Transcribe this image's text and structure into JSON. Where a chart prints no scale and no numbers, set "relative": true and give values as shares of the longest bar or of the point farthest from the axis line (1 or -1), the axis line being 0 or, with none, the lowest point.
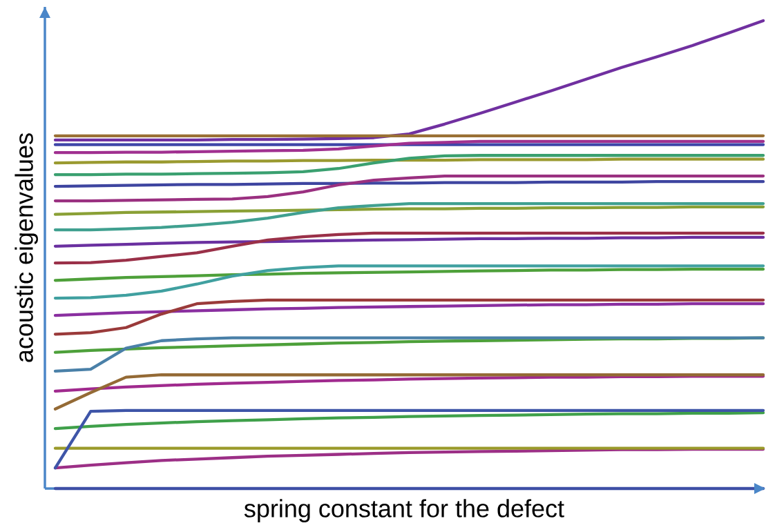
{
  "chart_data": {
    "type": "line",
    "relative": true,
    "xlabel": "spring constant for the defect",
    "ylabel": "acoustic eigenvalues",
    "categories": [
      null,
      null,
      null,
      null,
      null,
      null,
      null,
      null,
      null,
      null,
      null,
      null,
      null,
      null,
      null,
      null,
      null,
      null,
      null,
      null,
      null
    ],
    "series": [
      {
        "color": "#3e4fa6",
        "values": [
          0,
          0,
          0,
          0,
          0,
          0,
          0,
          0,
          0,
          0,
          0,
          0,
          0,
          0,
          0,
          0,
          0,
          0,
          0,
          0,
          0
        ]
      },
      {
        "color": "#9c2f86",
        "values": [
          0.044,
          0.05,
          0.055,
          0.06,
          0.063,
          0.066,
          0.069,
          0.071,
          0.073,
          0.075,
          0.077,
          0.078,
          0.079,
          0.08,
          0.081,
          0.082,
          0.083,
          0.083,
          0.084,
          0.084,
          0.084
        ]
      },
      {
        "color": "#9a9a2a",
        "values": [
          0.086,
          0.086,
          0.086,
          0.086,
          0.086,
          0.086,
          0.086,
          0.086,
          0.086,
          0.086,
          0.086,
          0.086,
          0.086,
          0.086,
          0.086,
          0.086,
          0.086,
          0.086,
          0.086,
          0.086,
          0.086
        ]
      },
      {
        "color": "#3fa04a",
        "values": [
          0.128,
          0.133,
          0.137,
          0.14,
          0.143,
          0.145,
          0.147,
          0.149,
          0.151,
          0.152,
          0.154,
          0.155,
          0.156,
          0.157,
          0.158,
          0.159,
          0.16,
          0.16,
          0.161,
          0.161,
          0.162
        ]
      },
      {
        "color": "#3e55a8",
        "values": [
          0.044,
          0.165,
          0.167,
          0.167,
          0.167,
          0.167,
          0.167,
          0.167,
          0.167,
          0.167,
          0.167,
          0.167,
          0.167,
          0.167,
          0.167,
          0.167,
          0.167,
          0.167,
          0.167,
          0.167,
          0.167
        ]
      },
      {
        "color": "#a02a8e",
        "values": [
          0.208,
          0.213,
          0.217,
          0.22,
          0.223,
          0.225,
          0.227,
          0.229,
          0.231,
          0.232,
          0.234,
          0.235,
          0.236,
          0.237,
          0.238,
          0.238,
          0.239,
          0.239,
          0.24,
          0.24,
          0.24
        ]
      },
      {
        "color": "#946a35",
        "values": [
          0.17,
          0.205,
          0.238,
          0.243,
          0.243,
          0.243,
          0.243,
          0.243,
          0.243,
          0.243,
          0.243,
          0.243,
          0.243,
          0.243,
          0.243,
          0.243,
          0.243,
          0.243,
          0.243,
          0.243,
          0.243
        ]
      },
      {
        "color": "#4da03a",
        "values": [
          0.291,
          0.295,
          0.298,
          0.301,
          0.303,
          0.305,
          0.307,
          0.309,
          0.311,
          0.312,
          0.314,
          0.315,
          0.316,
          0.317,
          0.318,
          0.319,
          0.32,
          0.32,
          0.321,
          0.321,
          0.322
        ]
      },
      {
        "color": "#4a80a8",
        "values": [
          0.251,
          0.255,
          0.3,
          0.316,
          0.32,
          0.322,
          0.322,
          0.322,
          0.322,
          0.322,
          0.322,
          0.322,
          0.322,
          0.322,
          0.322,
          0.322,
          0.322,
          0.322,
          0.322,
          0.322,
          0.322
        ]
      },
      {
        "color": "#8a2fa0",
        "values": [
          0.37,
          0.373,
          0.376,
          0.378,
          0.38,
          0.382,
          0.384,
          0.385,
          0.387,
          0.388,
          0.389,
          0.39,
          0.391,
          0.392,
          0.393,
          0.393,
          0.394,
          0.394,
          0.395,
          0.395,
          0.395
        ]
      },
      {
        "color": "#9a3a3a",
        "values": [
          0.33,
          0.333,
          0.344,
          0.373,
          0.395,
          0.4,
          0.403,
          0.403,
          0.403,
          0.403,
          0.403,
          0.403,
          0.403,
          0.403,
          0.403,
          0.403,
          0.403,
          0.403,
          0.403,
          0.403,
          0.403
        ]
      },
      {
        "color": "#4ea03a",
        "values": [
          0.445,
          0.448,
          0.451,
          0.453,
          0.455,
          0.457,
          0.458,
          0.46,
          0.461,
          0.462,
          0.463,
          0.464,
          0.465,
          0.466,
          0.467,
          0.467,
          0.468,
          0.468,
          0.469,
          0.469,
          0.469
        ]
      },
      {
        "color": "#40a0a0",
        "values": [
          0.407,
          0.408,
          0.413,
          0.422,
          0.437,
          0.454,
          0.466,
          0.472,
          0.476,
          0.476,
          0.476,
          0.476,
          0.476,
          0.476,
          0.476,
          0.476,
          0.476,
          0.476,
          0.476,
          0.476,
          0.476
        ]
      },
      {
        "color": "#6a30a0",
        "values": [
          0.518,
          0.52,
          0.522,
          0.524,
          0.526,
          0.527,
          0.528,
          0.529,
          0.53,
          0.531,
          0.532,
          0.533,
          0.534,
          0.534,
          0.535,
          0.535,
          0.536,
          0.536,
          0.537,
          0.537,
          0.537
        ]
      },
      {
        "color": "#9a3048",
        "values": [
          0.482,
          0.483,
          0.488,
          0.496,
          0.504,
          0.518,
          0.531,
          0.538,
          0.543,
          0.546,
          0.546,
          0.546,
          0.546,
          0.546,
          0.546,
          0.546,
          0.546,
          0.546,
          0.546,
          0.546,
          0.546
        ]
      },
      {
        "color": "#8aa035",
        "values": [
          0.586,
          0.588,
          0.59,
          0.591,
          0.592,
          0.593,
          0.594,
          0.595,
          0.596,
          0.597,
          0.598,
          0.598,
          0.599,
          0.599,
          0.6,
          0.6,
          0.601,
          0.601,
          0.602,
          0.602,
          0.602
        ]
      },
      {
        "color": "#40a090",
        "values": [
          0.553,
          0.553,
          0.555,
          0.558,
          0.563,
          0.569,
          0.578,
          0.59,
          0.6,
          0.605,
          0.609,
          0.609,
          0.609,
          0.609,
          0.609,
          0.609,
          0.609,
          0.609,
          0.609,
          0.609,
          0.609
        ]
      },
      {
        "color": "#3e45a0",
        "values": [
          0.646,
          0.647,
          0.648,
          0.649,
          0.65,
          0.65,
          0.651,
          0.652,
          0.652,
          0.653,
          0.653,
          0.654,
          0.654,
          0.654,
          0.655,
          0.655,
          0.655,
          0.656,
          0.656,
          0.656,
          0.656
        ]
      },
      {
        "color": "#9a3080",
        "values": [
          0.615,
          0.615,
          0.616,
          0.617,
          0.618,
          0.619,
          0.624,
          0.634,
          0.649,
          0.659,
          0.664,
          0.668,
          0.668,
          0.668,
          0.668,
          0.668,
          0.668,
          0.668,
          0.668,
          0.668,
          0.668
        ]
      },
      {
        "color": "#9a9a30",
        "values": [
          0.696,
          0.697,
          0.698,
          0.698,
          0.699,
          0.7,
          0.7,
          0.701,
          0.701,
          0.702,
          0.702,
          0.702,
          0.703,
          0.703,
          0.703,
          0.703,
          0.704,
          0.704,
          0.704,
          0.704,
          0.704
        ]
      },
      {
        "color": "#3aa070",
        "values": [
          0.671,
          0.671,
          0.672,
          0.672,
          0.673,
          0.674,
          0.675,
          0.677,
          0.684,
          0.696,
          0.706,
          0.711,
          0.712,
          0.712,
          0.712,
          0.712,
          0.712,
          0.712,
          0.712,
          0.712,
          0.712
        ]
      },
      {
        "color": "#3e45a8",
        "values": [
          0.735,
          0.735,
          0.735,
          0.735,
          0.735,
          0.735,
          0.735,
          0.735,
          0.735,
          0.735,
          0.735,
          0.735,
          0.735,
          0.735,
          0.735,
          0.735,
          0.735,
          0.735,
          0.735,
          0.735,
          0.735
        ]
      },
      {
        "color": "#a03090",
        "values": [
          0.718,
          0.718,
          0.719,
          0.719,
          0.72,
          0.721,
          0.722,
          0.723,
          0.726,
          0.732,
          0.738,
          0.74,
          0.742,
          0.742,
          0.742,
          0.742,
          0.742,
          0.742,
          0.742,
          0.742,
          0.742
        ]
      },
      {
        "color": "#7030a0",
        "values": [
          0.745,
          0.745,
          0.745,
          0.745,
          0.745,
          0.746,
          0.746,
          0.747,
          0.748,
          0.75,
          0.758,
          0.779,
          0.802,
          0.826,
          0.85,
          0.875,
          0.9,
          0.923,
          0.947,
          0.973,
          1.0
        ]
      },
      {
        "color": "#9a7035",
        "values": [
          0.754,
          0.754,
          0.754,
          0.754,
          0.754,
          0.754,
          0.754,
          0.754,
          0.754,
          0.754,
          0.754,
          0.754,
          0.754,
          0.754,
          0.754,
          0.754,
          0.754,
          0.754,
          0.754,
          0.754,
          0.754
        ]
      }
    ]
  }
}
